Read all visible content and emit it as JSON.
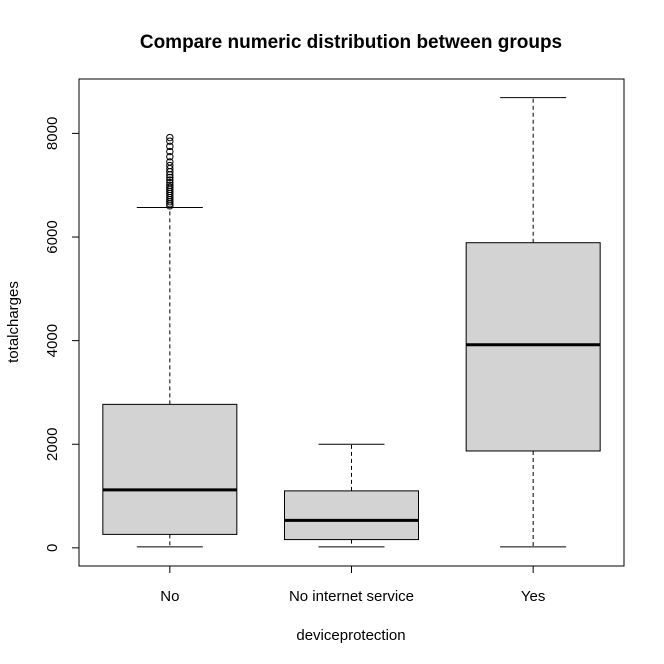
{
  "chart_data": {
    "type": "boxplot",
    "title": "Compare numeric distribution between groups",
    "xlabel": "deviceprotection",
    "ylabel": "totalcharges",
    "ylim": [
      -350,
      9050
    ],
    "yticks": [
      0,
      2000,
      4000,
      6000,
      8000
    ],
    "grid": false,
    "legend": "none",
    "categories": [
      "No",
      "No internet service",
      "Yes"
    ],
    "boxes": [
      {
        "category": "No",
        "whisker_low": 20,
        "q1": 260,
        "median": 1120,
        "q3": 2770,
        "whisker_high": 6570,
        "outliers": [
          6600,
          6640,
          6680,
          6720,
          6760,
          6800,
          6840,
          6880,
          6920,
          6960,
          7000,
          7050,
          7100,
          7150,
          7200,
          7260,
          7320,
          7380,
          7450,
          7550,
          7650,
          7750,
          7850,
          7920
        ]
      },
      {
        "category": "No internet service",
        "whisker_low": 20,
        "q1": 160,
        "median": 530,
        "q3": 1100,
        "whisker_high": 2000,
        "outliers": []
      },
      {
        "category": "Yes",
        "whisker_low": 20,
        "q1": 1870,
        "median": 3920,
        "q3": 5890,
        "whisker_high": 8690,
        "outliers": []
      }
    ],
    "colors": {
      "box_fill": "#d3d3d3",
      "stroke": "#000000"
    }
  }
}
